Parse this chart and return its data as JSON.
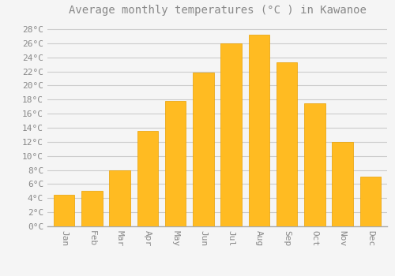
{
  "title": "Average monthly temperatures (°C ) in Kawanoe",
  "months": [
    "Jan",
    "Feb",
    "Mar",
    "Apr",
    "May",
    "Jun",
    "Jul",
    "Aug",
    "Sep",
    "Oct",
    "Nov",
    "Dec"
  ],
  "values": [
    4.5,
    5.0,
    8.0,
    13.5,
    17.8,
    21.8,
    26.0,
    27.2,
    23.3,
    17.5,
    12.0,
    7.0
  ],
  "bar_color": "#FFBB22",
  "bar_edge_color": "#E8A000",
  "background_color": "#F5F5F5",
  "grid_color": "#CCCCCC",
  "text_color": "#888888",
  "ylim": [
    0,
    29
  ],
  "ytick_step": 2,
  "title_fontsize": 10,
  "tick_fontsize": 8
}
